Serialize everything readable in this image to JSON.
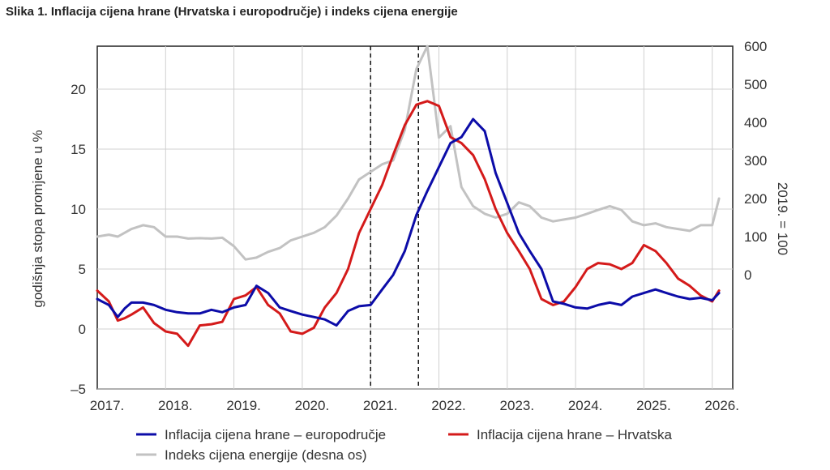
{
  "figure_title": "Slika 1. Inflacija cijena hrane (Hrvatska i europodručje) i indeks cijena energije",
  "chart_data": {
    "type": "line",
    "ylabel_left": "godišnja stopa promjene u %",
    "ylabel_right": "2019. = 100",
    "x_tick_labels": [
      "2017.",
      "2018.",
      "2019.",
      "2020.",
      "2021.",
      "2022.",
      "2023.",
      "2024.",
      "2025.",
      "2026."
    ],
    "x_range": [
      2017.0,
      2026.3
    ],
    "y_left_ticks": [
      "–5",
      "0",
      "5",
      "10",
      "15",
      "20"
    ],
    "y_left_range": [
      -5,
      20
    ],
    "y_right_ticks": [
      "0",
      "100",
      "200",
      "300",
      "400",
      "500",
      "600"
    ],
    "y_right_range": [
      -300,
      600
    ],
    "vertical_markers": [
      2021.0,
      2021.7
    ],
    "grid": true,
    "legend_position": "bottom",
    "colors": {
      "euro": "#0c0ca8",
      "hr": "#d41a1a",
      "energy": "#c2c2c2"
    },
    "series": [
      {
        "name": "Inflacija cijena hrane – europodručje",
        "axis": "left",
        "color": "#0c0ca8",
        "x": [
          2017.0,
          2017.17,
          2017.3,
          2017.4,
          2017.5,
          2017.67,
          2017.83,
          2018.0,
          2018.17,
          2018.33,
          2018.5,
          2018.67,
          2018.83,
          2019.0,
          2019.17,
          2019.33,
          2019.5,
          2019.67,
          2019.83,
          2020.0,
          2020.17,
          2020.33,
          2020.5,
          2020.67,
          2020.83,
          2021.0,
          2021.17,
          2021.33,
          2021.5,
          2021.67,
          2021.83,
          2022.0,
          2022.17,
          2022.33,
          2022.5,
          2022.67,
          2022.83,
          2023.0,
          2023.17,
          2023.33,
          2023.5,
          2023.67,
          2023.83,
          2024.0,
          2024.17,
          2024.33,
          2024.5,
          2024.67,
          2024.83,
          2025.0,
          2025.17,
          2025.33,
          2025.5,
          2025.67,
          2025.83,
          2026.0,
          2026.1
        ],
        "values": [
          2.5,
          2.0,
          1.0,
          1.7,
          2.2,
          2.2,
          2.0,
          1.6,
          1.4,
          1.3,
          1.3,
          1.6,
          1.4,
          1.8,
          2.0,
          3.6,
          3.0,
          1.8,
          1.5,
          1.2,
          1.0,
          0.8,
          0.3,
          1.5,
          1.9,
          2.0,
          3.3,
          4.5,
          6.5,
          9.5,
          11.5,
          13.5,
          15.5,
          16.0,
          17.5,
          16.5,
          13.0,
          10.5,
          8.0,
          6.5,
          5.0,
          2.3,
          2.1,
          1.8,
          1.7,
          2.0,
          2.2,
          2.0,
          2.7,
          3.0,
          3.3,
          3.0,
          2.7,
          2.5,
          2.6,
          2.4,
          3.0
        ]
      },
      {
        "name": "Inflacija cijena hrane – Hrvatska",
        "axis": "left",
        "color": "#d41a1a",
        "x": [
          2017.0,
          2017.17,
          2017.3,
          2017.4,
          2017.5,
          2017.67,
          2017.83,
          2018.0,
          2018.17,
          2018.33,
          2018.5,
          2018.67,
          2018.83,
          2019.0,
          2019.17,
          2019.33,
          2019.5,
          2019.67,
          2019.83,
          2020.0,
          2020.17,
          2020.33,
          2020.5,
          2020.67,
          2020.83,
          2021.0,
          2021.17,
          2021.33,
          2021.5,
          2021.67,
          2021.83,
          2022.0,
          2022.17,
          2022.33,
          2022.5,
          2022.67,
          2022.83,
          2023.0,
          2023.17,
          2023.33,
          2023.5,
          2023.67,
          2023.83,
          2024.0,
          2024.17,
          2024.33,
          2024.5,
          2024.67,
          2024.83,
          2025.0,
          2025.17,
          2025.33,
          2025.5,
          2025.67,
          2025.83,
          2026.0,
          2026.1
        ],
        "values": [
          3.2,
          2.3,
          0.7,
          0.9,
          1.2,
          1.8,
          0.5,
          -0.2,
          -0.4,
          -1.4,
          0.3,
          0.4,
          0.6,
          2.5,
          2.8,
          3.5,
          2.0,
          1.3,
          -0.2,
          -0.4,
          0.1,
          1.8,
          3.0,
          5.0,
          8.0,
          10.0,
          12.0,
          14.5,
          17.0,
          18.7,
          19.0,
          18.6,
          16.0,
          15.5,
          14.5,
          12.5,
          10.0,
          8.0,
          6.5,
          5.0,
          2.5,
          2.0,
          2.3,
          3.5,
          5.0,
          5.5,
          5.4,
          5.0,
          5.5,
          7.0,
          6.5,
          5.5,
          4.2,
          3.6,
          2.8,
          2.3,
          3.2
        ]
      },
      {
        "name": "Indeks cijena energije (desna os)",
        "axis": "right",
        "color": "#c2c2c2",
        "x": [
          2017.0,
          2017.17,
          2017.3,
          2017.4,
          2017.5,
          2017.67,
          2017.83,
          2018.0,
          2018.17,
          2018.33,
          2018.5,
          2018.67,
          2018.83,
          2019.0,
          2019.17,
          2019.33,
          2019.5,
          2019.67,
          2019.83,
          2020.0,
          2020.17,
          2020.33,
          2020.5,
          2020.67,
          2020.83,
          2021.0,
          2021.17,
          2021.33,
          2021.5,
          2021.67,
          2021.83,
          2022.0,
          2022.17,
          2022.33,
          2022.5,
          2022.67,
          2022.83,
          2023.0,
          2023.17,
          2023.33,
          2023.5,
          2023.67,
          2023.83,
          2024.0,
          2024.17,
          2024.33,
          2024.5,
          2024.67,
          2024.83,
          2025.0,
          2025.17,
          2025.33,
          2025.5,
          2025.67,
          2025.83,
          2026.0,
          2026.1
        ],
        "values": [
          100,
          105,
          100,
          110,
          120,
          130,
          125,
          100,
          100,
          95,
          96,
          95,
          97,
          75,
          40,
          45,
          60,
          70,
          90,
          100,
          110,
          125,
          155,
          200,
          250,
          270,
          290,
          300,
          380,
          540,
          600,
          360,
          390,
          230,
          180,
          160,
          150,
          160,
          190,
          180,
          150,
          140,
          145,
          150,
          160,
          170,
          180,
          170,
          140,
          130,
          135,
          125,
          120,
          115,
          130,
          130,
          200
        ]
      }
    ]
  },
  "legend": {
    "euro": "Inflacija cijena hrane – europodručje",
    "hr": "Inflacija cijena hrane – Hrvatska",
    "energy": "Indeks cijena energije (desna os)"
  }
}
